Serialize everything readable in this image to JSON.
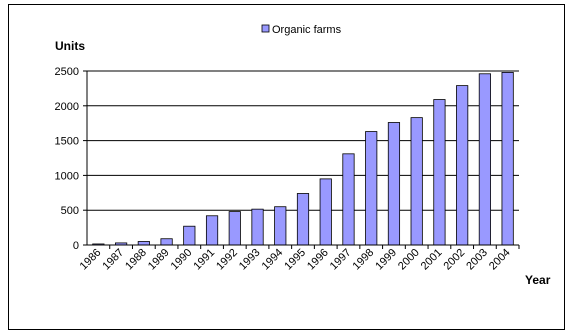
{
  "chart_data": {
    "type": "bar",
    "categories": [
      "1986",
      "1987",
      "1988",
      "1989",
      "1990",
      "1991",
      "1992",
      "1993",
      "1994",
      "1995",
      "1996",
      "1997",
      "1998",
      "1999",
      "2000",
      "2001",
      "2002",
      "2003",
      "2004"
    ],
    "series": [
      {
        "name": "Organic farms",
        "values": [
          15,
          30,
          50,
          90,
          270,
          420,
          480,
          515,
          550,
          740,
          950,
          1310,
          1630,
          1760,
          1830,
          2090,
          2290,
          2460,
          2480
        ]
      }
    ],
    "title": "",
    "xlabel": "Year",
    "ylabel": "Units",
    "ylim": [
      0,
      2500
    ],
    "yticks": [
      0,
      500,
      1000,
      1500,
      2000,
      2500
    ],
    "grid": true,
    "legend_position": "top",
    "colors": {
      "bar_fill": "#9999ff",
      "bar_stroke": "#000000",
      "gridline": "#000000"
    }
  }
}
